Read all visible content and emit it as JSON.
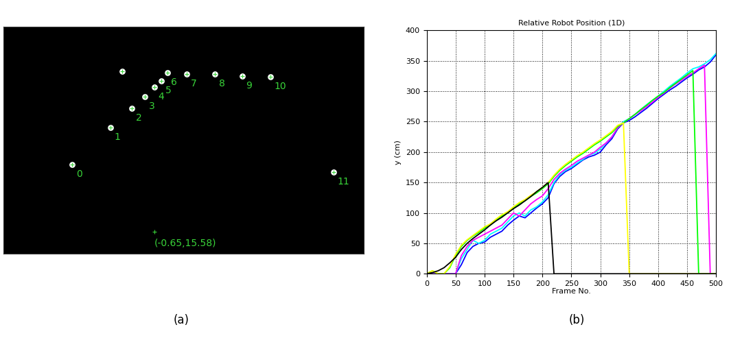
{
  "chart_data": [
    {
      "type": "scatter",
      "caption": "(a)",
      "x": [
        101,
        157,
        189,
        208,
        222,
        232,
        241,
        270,
        311,
        351,
        393,
        486,
        174
      ],
      "y": [
        200,
        146,
        118,
        101,
        87,
        78,
        66,
        68,
        68,
        71,
        72,
        211,
        64
      ],
      "labels": [
        "0",
        "1",
        "2",
        "3",
        "4",
        "5",
        "6",
        "7",
        "8",
        "9",
        "10",
        "11",
        null
      ],
      "color": "#39d439",
      "xlim": [
        0,
        530
      ],
      "ylim": [
        330,
        0
      ],
      "tick_labels": false,
      "annotations": [
        {
          "text": "(-0.65,15.58)",
          "x": 222,
          "y": 298
        }
      ]
    },
    {
      "type": "line",
      "caption": "(b)",
      "title": "Relative Robot Position (1D)",
      "x_label": "Frame No.",
      "y_label": "y (cm)",
      "x": [
        0,
        10,
        20,
        30,
        40,
        50,
        60,
        70,
        80,
        90,
        100,
        110,
        120,
        130,
        140,
        150,
        160,
        170,
        180,
        190,
        200,
        210,
        220,
        230,
        240,
        250,
        260,
        270,
        280,
        290,
        300,
        310,
        320,
        330,
        340,
        350,
        360,
        370,
        380,
        390,
        400,
        410,
        420,
        430,
        440,
        450,
        460,
        470,
        480,
        490,
        500
      ],
      "xlim": [
        0,
        500
      ],
      "xticks": [
        0,
        50,
        100,
        150,
        200,
        250,
        300,
        350,
        400,
        450,
        500
      ],
      "ylim": [
        0,
        400
      ],
      "yticks": [
        0,
        50,
        100,
        150,
        200,
        250,
        300,
        350,
        400
      ],
      "grid": true,
      "series": [
        {
          "color": "#0000ff",
          "values": [
            0,
            0,
            0,
            0,
            0,
            0,
            15,
            35,
            45,
            50,
            52,
            60,
            65,
            70,
            80,
            88,
            95,
            92,
            100,
            108,
            115,
            125,
            148,
            160,
            168,
            173,
            180,
            187,
            192,
            195,
            200,
            212,
            222,
            238,
            248,
            252,
            258,
            265,
            272,
            280,
            288,
            295,
            302,
            308,
            315,
            322,
            328,
            335,
            340,
            348,
            360
          ]
        },
        {
          "color": "#00ffff",
          "values": [
            0,
            0,
            0,
            0,
            0,
            0,
            25,
            40,
            55,
            50,
            55,
            65,
            70,
            75,
            85,
            95,
            100,
            95,
            105,
            110,
            118,
            130,
            150,
            163,
            170,
            175,
            182,
            188,
            195,
            198,
            205,
            215,
            225,
            240,
            250,
            255,
            262,
            270,
            278,
            285,
            292,
            300,
            308,
            315,
            322,
            330,
            337,
            340,
            345,
            352,
            362
          ]
        },
        {
          "color": "#ff00ff",
          "values": [
            0,
            0,
            0,
            0,
            0,
            0,
            30,
            45,
            55,
            60,
            65,
            70,
            75,
            80,
            90,
            100,
            95,
            105,
            115,
            122,
            128,
            140,
            155,
            165,
            172,
            178,
            185,
            190,
            195,
            200,
            208,
            215,
            225,
            240,
            248,
            255,
            262,
            268,
            275,
            282,
            290,
            297,
            305,
            312,
            318,
            325,
            330,
            337,
            343,
            0,
            0
          ]
        },
        {
          "color": "#00ff00",
          "values": [
            0,
            5,
            0,
            0,
            10,
            30,
            45,
            55,
            62,
            68,
            75,
            80,
            88,
            95,
            100,
            108,
            115,
            120,
            127,
            133,
            140,
            148,
            160,
            170,
            178,
            185,
            192,
            198,
            205,
            212,
            218,
            225,
            232,
            242,
            248,
            255,
            262,
            270,
            277,
            285,
            292,
            298,
            306,
            313,
            320,
            327,
            334,
            0,
            0,
            0,
            0
          ]
        },
        {
          "color": "#ffff00",
          "values": [
            0,
            5,
            0,
            0,
            12,
            32,
            47,
            56,
            63,
            70,
            77,
            82,
            90,
            97,
            102,
            110,
            117,
            122,
            129,
            135,
            142,
            150,
            162,
            172,
            180,
            187,
            194,
            200,
            207,
            214,
            220,
            227,
            234,
            244,
            248,
            0,
            0,
            0,
            0,
            0,
            0,
            0,
            0,
            0,
            0,
            0,
            0,
            0,
            0,
            0,
            0
          ]
        },
        {
          "color": "#000000",
          "values": [
            0,
            2,
            5,
            10,
            18,
            27,
            40,
            50,
            58,
            65,
            72,
            80,
            87,
            93,
            100,
            107,
            113,
            120,
            127,
            135,
            142,
            150,
            0,
            0,
            0,
            0,
            0,
            0,
            0,
            0,
            0,
            0,
            0,
            0,
            0,
            0,
            0,
            0,
            0,
            0,
            0,
            0,
            0,
            0,
            0,
            0,
            0,
            0,
            0,
            0,
            0
          ]
        }
      ]
    }
  ]
}
